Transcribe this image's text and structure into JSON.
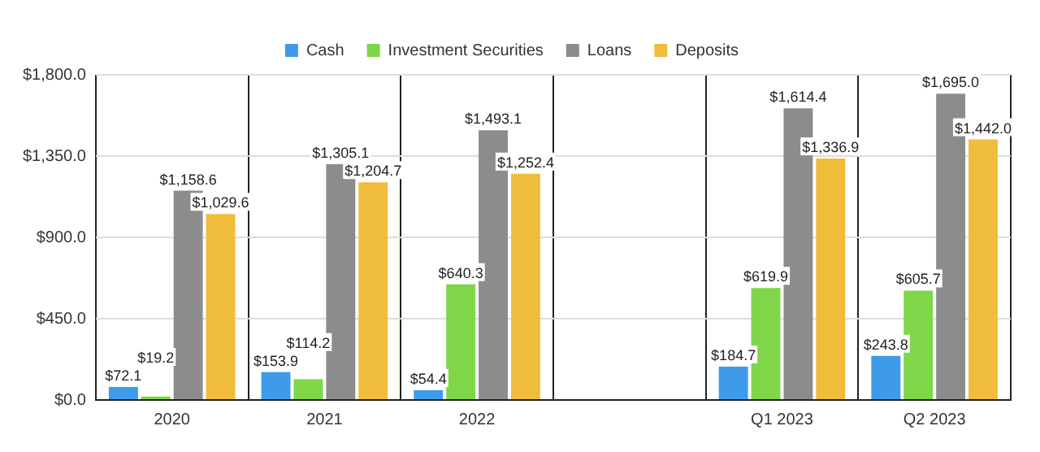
{
  "chart_data": {
    "type": "bar",
    "categories": [
      "2020",
      "2021",
      "2022",
      null,
      "Q1 2023",
      "Q2 2023"
    ],
    "series": [
      {
        "name": "Cash",
        "color": "#3d9be9",
        "values": [
          72.1,
          153.9,
          54.4,
          null,
          184.7,
          243.8
        ],
        "value_labels": [
          "$72.1",
          "$153.9",
          "$54.4",
          null,
          "$184.7",
          "$243.8"
        ]
      },
      {
        "name": "Investment Securities",
        "color": "#7ed648",
        "values": [
          19.2,
          114.2,
          640.3,
          null,
          619.9,
          605.7
        ],
        "value_labels": [
          "$19.2",
          "$114.2",
          "$640.3",
          null,
          "$619.9",
          "$605.7"
        ]
      },
      {
        "name": "Loans",
        "color": "#8c8c8c",
        "values": [
          1158.6,
          1305.1,
          1493.1,
          null,
          1614.4,
          1695.0
        ],
        "value_labels": [
          "$1,158.6",
          "$1,305.1",
          "$1,493.1",
          null,
          "$1,614.4",
          "$1,695.0"
        ]
      },
      {
        "name": "Deposits",
        "color": "#f0bc3c",
        "values": [
          1029.6,
          1204.7,
          1252.4,
          null,
          1336.9,
          1442.0
        ],
        "value_labels": [
          "$1,029.6",
          "$1,204.7",
          "$1,252.4",
          null,
          "$1,336.9",
          "$1,442.0"
        ]
      }
    ],
    "ylim": [
      0,
      1800
    ],
    "yticks": [
      {
        "value": 0,
        "label": "$0.0"
      },
      {
        "value": 450,
        "label": "$450.0"
      },
      {
        "value": 900,
        "label": "$900.0"
      },
      {
        "value": 1350,
        "label": "$1,350.0"
      },
      {
        "value": 1800,
        "label": "$1,800.0"
      }
    ],
    "grid": true,
    "legend": "top"
  }
}
